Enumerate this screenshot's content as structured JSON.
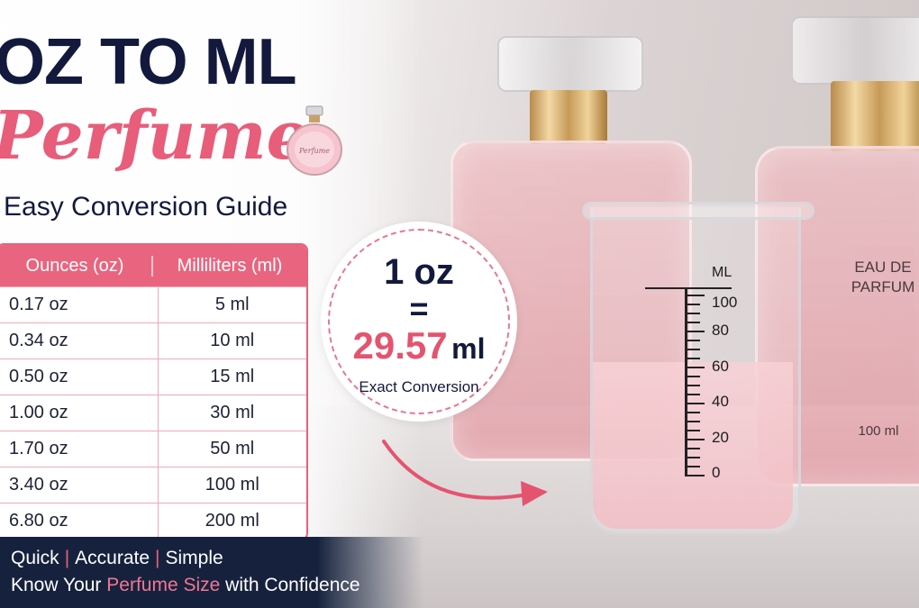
{
  "header": {
    "title": "OZ TO ML",
    "script_title": "Perfume",
    "subtitle": "Easy Conversion Guide",
    "mini_bottle_label": "Perfume"
  },
  "table": {
    "col_oz": "Ounces (oz)",
    "col_ml": "Milliliters (ml)",
    "rows": [
      {
        "oz": "0.17 oz",
        "ml": "5 ml"
      },
      {
        "oz": "0.34 oz",
        "ml": "10 ml"
      },
      {
        "oz": "0.50 oz",
        "ml": "15 ml"
      },
      {
        "oz": "1.00 oz",
        "ml": "30 ml"
      },
      {
        "oz": "1.70 oz",
        "ml": "50 ml"
      },
      {
        "oz": "3.40 oz",
        "ml": "100 ml"
      },
      {
        "oz": "6.80 oz",
        "ml": "200 ml"
      }
    ]
  },
  "badge": {
    "oz": "1 oz",
    "equals": "=",
    "value": "29.57",
    "unit": "ml",
    "caption": "Exact Conversion"
  },
  "beaker": {
    "unit_label": "ML",
    "marks": [
      "100",
      "80",
      "60",
      "40",
      "20",
      "0"
    ]
  },
  "bottle": {
    "label_line1": "EAU DE",
    "label_line2": "PARFUM",
    "volume": "100 ml"
  },
  "footer": {
    "tag1": "Quick",
    "tag2": "Accurate",
    "tag3": "Simple",
    "separator": "|",
    "line_prefix": "Know Your ",
    "line_accent": "Perfume Size",
    "line_suffix": " with Confidence"
  },
  "colors": {
    "navy": "#13193d",
    "pink": "#e9657f",
    "footer_bg": "#16223d"
  }
}
